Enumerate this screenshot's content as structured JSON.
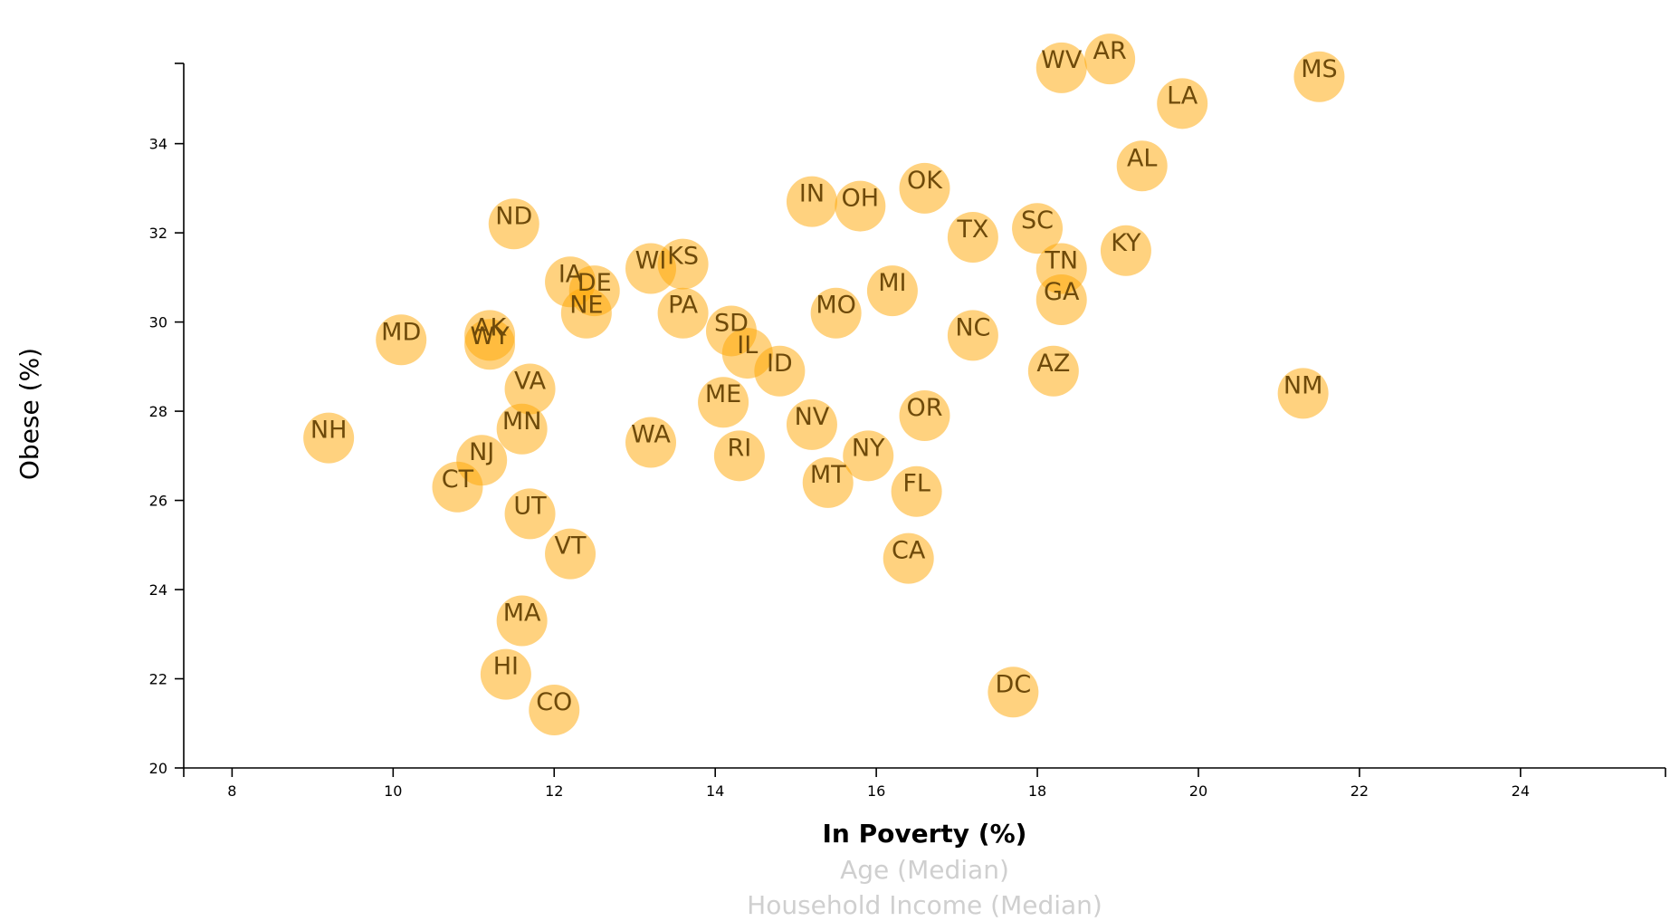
{
  "chart_data": {
    "type": "scatter",
    "title": "",
    "xlabel": "In Poverty (%)",
    "x_alt_labels": [
      "Age (Median)",
      "Household Income (Median)"
    ],
    "ylabel": "Obese (%)",
    "xlim": [
      7.4,
      25.8
    ],
    "ylim": [
      20,
      35.8
    ],
    "xticks": [
      8,
      10,
      12,
      14,
      16,
      18,
      20,
      22,
      24
    ],
    "yticks": [
      20,
      22,
      24,
      26,
      28,
      30,
      32,
      34
    ],
    "marker_color": "#ffa500",
    "label_color": "#6e4a0a",
    "grid": false,
    "points": [
      {
        "label": "WV",
        "x": 18.3,
        "y": 35.7
      },
      {
        "label": "AR",
        "x": 18.9,
        "y": 35.9
      },
      {
        "label": "MS",
        "x": 21.5,
        "y": 35.5
      },
      {
        "label": "LA",
        "x": 19.8,
        "y": 34.9
      },
      {
        "label": "AL",
        "x": 19.3,
        "y": 33.5
      },
      {
        "label": "OK",
        "x": 16.6,
        "y": 33.0
      },
      {
        "label": "IN",
        "x": 15.2,
        "y": 32.7
      },
      {
        "label": "OH",
        "x": 15.8,
        "y": 32.6
      },
      {
        "label": "ND",
        "x": 11.5,
        "y": 32.2
      },
      {
        "label": "SC",
        "x": 18.0,
        "y": 32.1
      },
      {
        "label": "TX",
        "x": 17.2,
        "y": 31.9
      },
      {
        "label": "KY",
        "x": 19.1,
        "y": 31.6
      },
      {
        "label": "WI",
        "x": 13.2,
        "y": 31.2
      },
      {
        "label": "KS",
        "x": 13.6,
        "y": 31.3
      },
      {
        "label": "TN",
        "x": 18.3,
        "y": 31.2
      },
      {
        "label": "IA",
        "x": 12.2,
        "y": 30.9
      },
      {
        "label": "DE",
        "x": 12.5,
        "y": 30.7
      },
      {
        "label": "MI",
        "x": 16.2,
        "y": 30.7
      },
      {
        "label": "GA",
        "x": 18.3,
        "y": 30.5
      },
      {
        "label": "NE",
        "x": 12.4,
        "y": 30.2
      },
      {
        "label": "PA",
        "x": 13.6,
        "y": 30.2
      },
      {
        "label": "MO",
        "x": 15.5,
        "y": 30.2
      },
      {
        "label": "SD",
        "x": 14.2,
        "y": 29.8
      },
      {
        "label": "NC",
        "x": 17.2,
        "y": 29.7
      },
      {
        "label": "AK",
        "x": 11.2,
        "y": 29.7
      },
      {
        "label": "MD",
        "x": 10.1,
        "y": 29.6
      },
      {
        "label": "WY",
        "x": 11.2,
        "y": 29.5
      },
      {
        "label": "IL",
        "x": 14.4,
        "y": 29.3
      },
      {
        "label": "ID",
        "x": 14.8,
        "y": 28.9
      },
      {
        "label": "AZ",
        "x": 18.2,
        "y": 28.9
      },
      {
        "label": "VA",
        "x": 11.7,
        "y": 28.5
      },
      {
        "label": "NM",
        "x": 21.3,
        "y": 28.4
      },
      {
        "label": "ME",
        "x": 14.1,
        "y": 28.2
      },
      {
        "label": "OR",
        "x": 16.6,
        "y": 27.9
      },
      {
        "label": "NV",
        "x": 15.2,
        "y": 27.7
      },
      {
        "label": "MN",
        "x": 11.6,
        "y": 27.6
      },
      {
        "label": "NH",
        "x": 9.2,
        "y": 27.4
      },
      {
        "label": "WA",
        "x": 13.2,
        "y": 27.3
      },
      {
        "label": "RI",
        "x": 14.3,
        "y": 27.0
      },
      {
        "label": "NY",
        "x": 15.9,
        "y": 27.0
      },
      {
        "label": "NJ",
        "x": 11.1,
        "y": 26.9
      },
      {
        "label": "MT",
        "x": 15.4,
        "y": 26.4
      },
      {
        "label": "CT",
        "x": 10.8,
        "y": 26.3
      },
      {
        "label": "FL",
        "x": 16.5,
        "y": 26.2
      },
      {
        "label": "UT",
        "x": 11.7,
        "y": 25.7
      },
      {
        "label": "VT",
        "x": 12.2,
        "y": 24.8
      },
      {
        "label": "CA",
        "x": 16.4,
        "y": 24.7
      },
      {
        "label": "MA",
        "x": 11.6,
        "y": 23.3
      },
      {
        "label": "HI",
        "x": 11.4,
        "y": 22.1
      },
      {
        "label": "DC",
        "x": 17.7,
        "y": 21.7
      },
      {
        "label": "CO",
        "x": 12.0,
        "y": 21.3
      }
    ]
  }
}
